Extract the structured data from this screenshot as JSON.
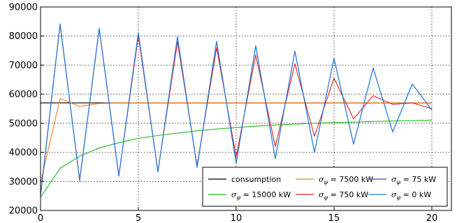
{
  "chart_data": {
    "type": "line",
    "title": "",
    "xlabel": "",
    "ylabel": "",
    "xlim": [
      0,
      21
    ],
    "ylim": [
      20000,
      90000
    ],
    "xticks": [
      0,
      5,
      10,
      15,
      20
    ],
    "yticks": [
      20000,
      30000,
      40000,
      50000,
      60000,
      70000,
      80000,
      90000
    ],
    "grid": true,
    "legend_position": "bottom-right",
    "x": [
      0,
      1,
      2,
      3,
      4,
      5,
      6,
      7,
      8,
      9,
      10,
      11,
      12,
      13,
      14,
      15,
      16,
      17,
      18,
      19,
      20
    ],
    "series": [
      {
        "name": "consumption",
        "color": "#000000",
        "values": [
          57000,
          57000,
          57000,
          57000,
          57000,
          57000,
          57000,
          57000,
          57000,
          57000,
          57000,
          57000,
          57000,
          57000,
          57000,
          57000,
          57000,
          57000,
          57000,
          57000,
          57000
        ]
      },
      {
        "name": "σ_φ = 15000 kW",
        "color": "#22bb22",
        "values": [
          24500,
          34500,
          38700,
          41500,
          43300,
          44800,
          45800,
          46600,
          47400,
          48000,
          48500,
          49000,
          49400,
          49700,
          50000,
          50200,
          50400,
          50600,
          50800,
          50900,
          51100
        ]
      },
      {
        "name": "σ_φ = 7500 kW",
        "color": "#f07f20",
        "values": [
          29500,
          58500,
          55800,
          56800,
          57000,
          57000,
          57000,
          57000,
          57000,
          57000,
          57000,
          57000,
          57000,
          57000,
          57000,
          57000,
          57000,
          57000,
          57000,
          57000,
          57000
        ]
      },
      {
        "name": "σ_φ = 750 kW",
        "color": "#dd1f1f",
        "values": [
          25500,
          84000,
          30500,
          82500,
          32000,
          80000,
          33500,
          78000,
          35500,
          76000,
          38500,
          73500,
          42000,
          70500,
          45500,
          65500,
          51500,
          59500,
          56500,
          57000,
          55000
        ]
      },
      {
        "name": "σ_φ = 75 kW",
        "color": "#4040cc",
        "values": [
          25000,
          84200,
          30300,
          82700,
          31800,
          81000,
          33300,
          79700,
          34800,
          78100,
          36300,
          76600,
          37800,
          74800,
          40000,
          72300,
          42800,
          69000,
          47000,
          63500,
          54500
        ]
      },
      {
        "name": "σ_φ = 0 kW",
        "color": "#2080dd",
        "values": [
          25000,
          84200,
          30300,
          82700,
          31800,
          81200,
          33300,
          79800,
          34800,
          78200,
          36300,
          76700,
          37800,
          74800,
          40000,
          72300,
          42800,
          69000,
          47000,
          63500,
          54500
        ]
      }
    ],
    "legend": {
      "entries": [
        {
          "symbol": "",
          "text": "consumption",
          "color": "#000000"
        },
        {
          "symbol": "σ",
          "sub": "φ",
          "text": " = 7500 kW",
          "color": "#f07f20"
        },
        {
          "symbol": "σ",
          "sub": "φ",
          "text": " = 75 kW",
          "color": "#4040cc"
        },
        {
          "symbol": "σ",
          "sub": "φ",
          "text": " = 15000 kW",
          "color": "#22bb22"
        },
        {
          "symbol": "σ",
          "sub": "φ",
          "text": " = 750 kW",
          "color": "#dd1f1f"
        },
        {
          "symbol": "σ",
          "sub": "φ",
          "text": " = 0 kW",
          "color": "#2080dd"
        }
      ]
    }
  }
}
